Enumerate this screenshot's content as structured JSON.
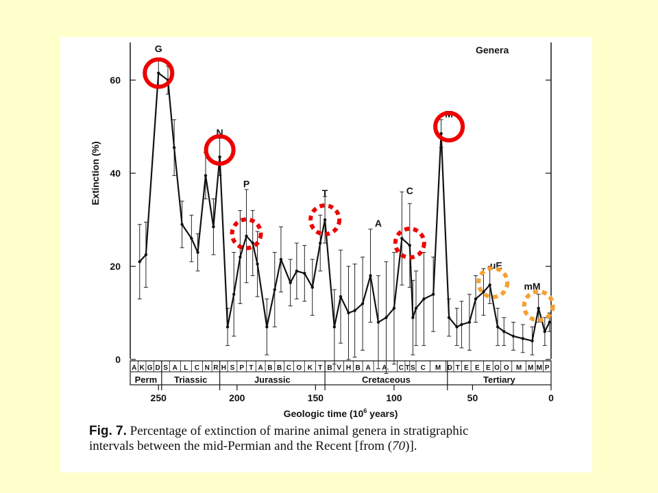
{
  "slide": {
    "background": "#ffffcc"
  },
  "chart_data": {
    "type": "line",
    "panel_label": "Genera",
    "ylabel": "Extinction (%)",
    "xlabel_main": "Geologic time (10",
    "xlabel_sup": "6",
    "xlabel_tail": " years)",
    "x_reversed": true,
    "xlim": [
      268,
      0
    ],
    "ylim": [
      0,
      70
    ],
    "x_ticks": [
      250,
      200,
      150,
      100,
      50,
      0
    ],
    "y_ticks": [
      0,
      20,
      40,
      60
    ],
    "series": [
      {
        "x": [
          262,
          258,
          250,
          244,
          240,
          235,
          229,
          225,
          220,
          215,
          211,
          206,
          202,
          198,
          194,
          190,
          187,
          181,
          176,
          172,
          166,
          162,
          157,
          152,
          147,
          144,
          138,
          134,
          129,
          125,
          120,
          115,
          110,
          105,
          100,
          95,
          90,
          88,
          86,
          81,
          75,
          70,
          65,
          60,
          57,
          52,
          48,
          43,
          39,
          34,
          30,
          24,
          18,
          12,
          8,
          4,
          1
        ],
        "y": [
          21,
          22.5,
          61.5,
          60,
          45.5,
          29,
          26,
          23,
          39.5,
          28.5,
          43.5,
          7,
          14,
          22,
          26.5,
          25,
          20.5,
          7,
          15,
          21.5,
          16.5,
          19,
          18.5,
          15.5,
          25,
          30,
          7,
          13.5,
          10,
          10.5,
          12,
          18,
          8,
          9,
          11,
          26,
          24.5,
          9,
          11,
          13,
          14,
          48.5,
          9,
          7,
          7.5,
          8,
          13,
          14.5,
          16,
          7,
          6,
          5,
          4.5,
          4,
          11,
          6,
          8
        ],
        "err": [
          8,
          7,
          3,
          3,
          6,
          5,
          5,
          4,
          5,
          6,
          4,
          4,
          9,
          10,
          10,
          7,
          7,
          6,
          8,
          7,
          5,
          6,
          6,
          6,
          6,
          5,
          8,
          10,
          10,
          10,
          10,
          10,
          10,
          12,
          12,
          10,
          9,
          8,
          8,
          10,
          8,
          3,
          4,
          4,
          5,
          6,
          5,
          5,
          4,
          4,
          3,
          3,
          3,
          3,
          3,
          3,
          2
        ]
      }
    ],
    "peak_labels": [
      {
        "text": "G",
        "x": 250,
        "y": 66
      },
      {
        "text": "N",
        "x": 211,
        "y": 48
      },
      {
        "text": "P",
        "x": 194,
        "y": 37
      },
      {
        "text": "T",
        "x": 144,
        "y": 35
      },
      {
        "text": "A",
        "x": 110,
        "y": 28.5
      },
      {
        "text": "C",
        "x": 90,
        "y": 35.5
      },
      {
        "text": "M",
        "x": 65,
        "y": 52
      },
      {
        "text": "uE",
        "x": 35,
        "y": 19.5
      },
      {
        "text": "mM",
        "x": 12,
        "y": 15
      }
    ],
    "stages": [
      {
        "label": "A",
        "from": 268,
        "to": 263
      },
      {
        "label": "K",
        "from": 263,
        "to": 258
      },
      {
        "label": "G",
        "from": 258,
        "to": 253
      },
      {
        "label": "D",
        "from": 253,
        "to": 248
      },
      {
        "label": "S",
        "from": 248,
        "to": 243
      },
      {
        "label": "A",
        "from": 243,
        "to": 236
      },
      {
        "label": "L",
        "from": 236,
        "to": 229
      },
      {
        "label": "C",
        "from": 229,
        "to": 222
      },
      {
        "label": "N",
        "from": 222,
        "to": 216
      },
      {
        "label": "R",
        "from": 216,
        "to": 211
      },
      {
        "label": "H",
        "from": 211,
        "to": 206
      },
      {
        "label": "S",
        "from": 206,
        "to": 200
      },
      {
        "label": "P",
        "from": 200,
        "to": 194
      },
      {
        "label": "T",
        "from": 194,
        "to": 188
      },
      {
        "label": "A",
        "from": 188,
        "to": 182
      },
      {
        "label": "B",
        "from": 182,
        "to": 176
      },
      {
        "label": "B",
        "from": 176,
        "to": 170
      },
      {
        "label": "C",
        "from": 170,
        "to": 164
      },
      {
        "label": "O",
        "from": 164,
        "to": 157
      },
      {
        "label": "K",
        "from": 157,
        "to": 150
      },
      {
        "label": "T",
        "from": 150,
        "to": 144
      },
      {
        "label": "B",
        "from": 144,
        "to": 138
      },
      {
        "label": "V",
        "from": 138,
        "to": 132
      },
      {
        "label": "H",
        "from": 132,
        "to": 126
      },
      {
        "label": "B",
        "from": 126,
        "to": 120
      },
      {
        "label": "A",
        "from": 120,
        "to": 113
      },
      {
        "label": "A.",
        "from": 113,
        "to": 98
      },
      {
        "label": "C",
        "from": 98,
        "to": 93
      },
      {
        "label": "T",
        "from": 93,
        "to": 90
      },
      {
        "label": "S",
        "from": 90,
        "to": 86
      },
      {
        "label": "C",
        "from": 86,
        "to": 77
      },
      {
        "label": "M",
        "from": 77,
        "to": 67
      },
      {
        "label": "D",
        "from": 67,
        "to": 62
      },
      {
        "label": "T",
        "from": 62,
        "to": 57
      },
      {
        "label": "E",
        "from": 57,
        "to": 51
      },
      {
        "label": "E",
        "from": 51,
        "to": 43
      },
      {
        "label": "E",
        "from": 43,
        "to": 37
      },
      {
        "label": "O",
        "from": 37,
        "to": 32
      },
      {
        "label": "O",
        "from": 32,
        "to": 25
      },
      {
        "label": "M",
        "from": 25,
        "to": 16
      },
      {
        "label": "M",
        "from": 16,
        "to": 10
      },
      {
        "label": "M",
        "from": 10,
        "to": 5
      },
      {
        "label": "P",
        "from": 5,
        "to": 0
      }
    ],
    "periods": [
      {
        "label": "Perm",
        "from": 268,
        "to": 248
      },
      {
        "label": "Triassic",
        "from": 248,
        "to": 211
      },
      {
        "label": "Jurassic",
        "from": 211,
        "to": 144
      },
      {
        "label": "Cretaceous",
        "from": 144,
        "to": 66
      },
      {
        "label": "Tertiary",
        "from": 66,
        "to": 0
      }
    ],
    "highlights": [
      {
        "x": 250,
        "y": 61.5,
        "color": "#ee0000",
        "style": "solid"
      },
      {
        "x": 211,
        "y": 45,
        "color": "#ee0000",
        "style": "solid"
      },
      {
        "x": 65,
        "y": 50,
        "color": "#ee0000",
        "style": "solid"
      },
      {
        "x": 194,
        "y": 27,
        "color": "#ee0000",
        "style": "dotted"
      },
      {
        "x": 144,
        "y": 30,
        "color": "#ee0000",
        "style": "dotted"
      },
      {
        "x": 90,
        "y": 25,
        "color": "#ee0000",
        "style": "dotted"
      },
      {
        "x": 37,
        "y": 16.5,
        "color": "#f5a030",
        "style": "dotted"
      },
      {
        "x": 8,
        "y": 11.5,
        "color": "#f5a030",
        "style": "dotted"
      }
    ]
  },
  "caption": {
    "label": "Fig. 7.",
    "line1": "Percentage of extinction of marine animal genera in stratigraphic",
    "line2_a": "intervals between the mid-Permian and the Recent [from (",
    "line2_ref": "70",
    "line2_b": ")]."
  }
}
